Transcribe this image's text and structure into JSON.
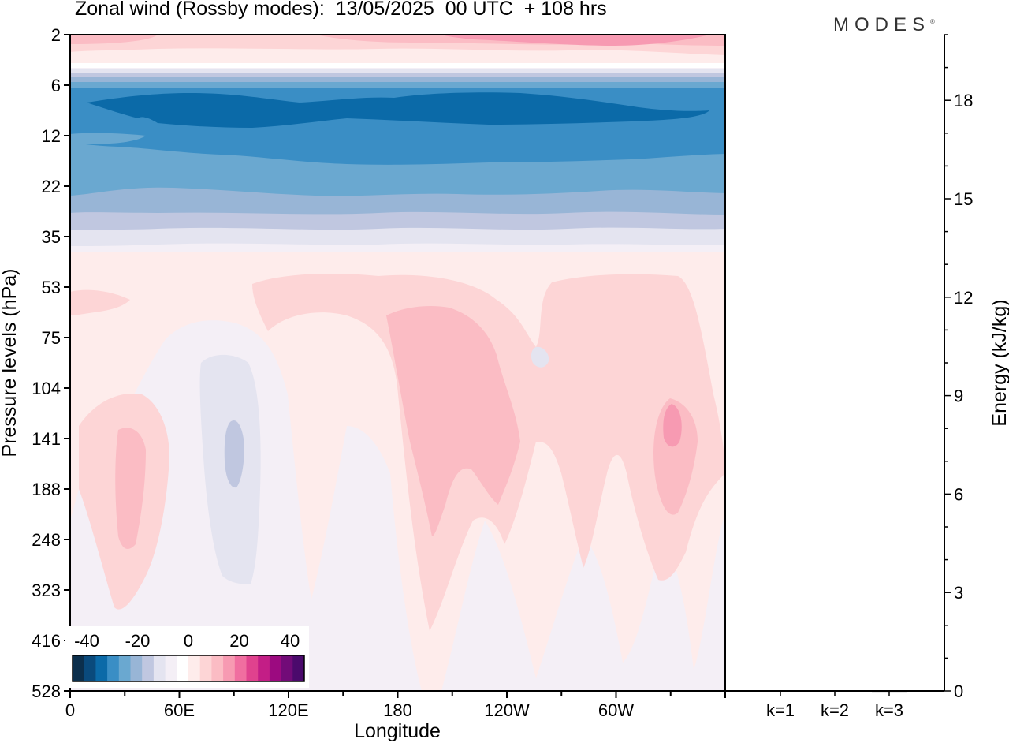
{
  "title": "Zonal wind (Rossby modes):  13/05/2025  00 UTC  + 108 hrs",
  "logo": "MODES",
  "logo_mark": "®",
  "chart_data": [
    {
      "type": "heatmap",
      "title": "Zonal wind (Rossby modes):  13/05/2025  00 UTC  + 108 hrs",
      "xlabel": "Longitude",
      "ylabel": "Pressure levels (hPa)",
      "x_ticks": [
        "0",
        "60E",
        "120E",
        "180",
        "120W",
        "60W"
      ],
      "y_ticks": [
        "2",
        "6",
        "12",
        "22",
        "35",
        "53",
        "75",
        "104",
        "141",
        "188",
        "248",
        "323",
        "416",
        "528"
      ],
      "y_scale": "log",
      "colorbar": {
        "tick_labels": [
          "-40",
          "-20",
          "0",
          "20",
          "40"
        ],
        "range": [
          -40,
          40
        ],
        "colors": [
          "#0c2f4c",
          "#0a4a7c",
          "#0b6aa8",
          "#3a8ec5",
          "#6aa8d0",
          "#98b5d6",
          "#c0c7e0",
          "#e4e4f0",
          "#f4eff6",
          "#ffffff",
          "#feeceb",
          "#fdd5d6",
          "#fbbcc4",
          "#f79ab2",
          "#f06ea0",
          "#e0428e",
          "#c31e86",
          "#9c0a80",
          "#720b78",
          "#4b0a6c"
        ]
      },
      "contours": [
        {
          "value": -25,
          "color": "#0b6aa8"
        },
        {
          "value": -20,
          "color": "#3a8ec5"
        },
        {
          "value": -15,
          "color": "#6aa8d0"
        },
        {
          "value": -10,
          "color": "#98b5d6"
        },
        {
          "value": -5,
          "color": "#c0c7e0"
        },
        {
          "value": 0,
          "color": "#f4eff6"
        },
        {
          "value": 5,
          "color": "#feeceb"
        },
        {
          "value": 10,
          "color": "#fdd5d6"
        },
        {
          "value": 15,
          "color": "#fbbcc4"
        },
        {
          "value": 20,
          "color": "#f79ab2"
        }
      ]
    },
    {
      "type": "bar",
      "categories": [
        "k=1",
        "k=2",
        "k=3"
      ],
      "values": [
        0.02,
        0.02,
        0.01
      ],
      "ylabel": "Energy (kJ/kg)",
      "y_ticks": [
        "0",
        "3",
        "6",
        "9",
        "12",
        "15",
        "18"
      ],
      "ylim": [
        0,
        20
      ]
    }
  ]
}
